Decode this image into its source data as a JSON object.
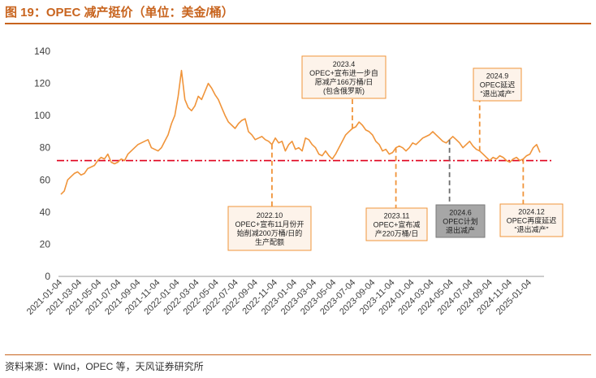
{
  "header": {
    "title": "图 19：OPEC 减产挺价（单位：美金/桶）"
  },
  "footer": {
    "source": "资料来源：Wind，OPEC 等，天风证券研究所"
  },
  "colors": {
    "line": "#f0943a",
    "reference": "#e0001b",
    "annotation_border": "#f0943a",
    "annotation_fill": "#fdf3ea",
    "highlight_fill": "#a6a6a6",
    "frame": "#c8641e"
  },
  "chart_data": {
    "type": "line",
    "title": "OPEC 减产挺价",
    "ylabel": "美金/桶",
    "ylim": [
      0,
      140
    ],
    "yticks": [
      "0",
      "20",
      "40",
      "60",
      "80",
      "100",
      "120",
      "140"
    ],
    "xtick_labels": [
      "2021-01-04",
      "2021-03-04",
      "2021-05-04",
      "2021-07-04",
      "2021-09-04",
      "2021-11-04",
      "2022-01-04",
      "2022-03-04",
      "2022-05-04",
      "2022-07-04",
      "2022-09-04",
      "2022-11-04",
      "2023-01-04",
      "2023-03-04",
      "2023-05-04",
      "2023-07-04",
      "2023-09-04",
      "2023-11-04",
      "2024-01-04",
      "2024-03-04",
      "2024-05-04",
      "2024-07-04",
      "2024-09-04",
      "2024-11-04",
      "2025-01-04"
    ],
    "reference_line": 72,
    "grid": false,
    "series": [
      {
        "values": [
          51,
          53,
          60,
          62,
          64,
          65,
          63,
          64,
          67,
          68,
          69,
          72,
          74,
          73,
          76,
          71,
          70,
          71,
          73,
          72,
          76,
          78,
          80,
          82,
          83,
          84,
          85,
          80,
          79,
          78,
          80,
          84,
          88,
          95,
          100,
          112,
          128,
          110,
          105,
          103,
          106,
          112,
          110,
          115,
          120,
          117,
          113,
          110,
          105,
          100,
          96,
          94,
          92,
          95,
          97,
          98,
          90,
          88,
          85,
          86,
          87,
          85,
          84,
          82,
          86,
          83,
          84,
          78,
          82,
          84,
          79,
          80,
          78,
          86,
          85,
          82,
          80,
          76,
          75,
          78,
          75,
          73,
          76,
          80,
          84,
          88,
          90,
          92,
          93,
          96,
          94,
          91,
          90,
          88,
          84,
          82,
          78,
          79,
          76,
          77,
          80,
          81,
          80,
          78,
          80,
          83,
          82,
          84,
          86,
          87,
          88,
          90,
          88,
          86,
          84,
          83,
          85,
          87,
          85,
          83,
          80,
          82,
          84,
          81,
          79,
          78,
          76,
          74,
          72,
          74,
          73,
          75,
          74,
          72,
          71,
          73,
          74,
          72,
          73,
          75,
          76,
          80,
          82,
          77
        ]
      }
    ],
    "annotations": [
      {
        "date_index": 63,
        "label_lines": [
          "2022.10",
          "OPEC+宣布11月份开",
          "始削减200万桶/日的",
          "生产配额"
        ]
      },
      {
        "date_index": 87,
        "label_lines": [
          "2023.4",
          "OPEC+宣布进一步自",
          "愿减产166万桶/日",
          "(包含俄罗斯)"
        ]
      },
      {
        "date_index": 100,
        "label_lines": [
          "2023.11",
          "OPEC+宣布减",
          "产220万桶/日"
        ]
      },
      {
        "date_index": 116,
        "label_lines": [
          "2024.6",
          "OPEC计划",
          "退出减产"
        ]
      },
      {
        "date_index": 125,
        "label_lines": [
          "2024.9",
          "OPEC延迟",
          "“退出减产”"
        ]
      },
      {
        "date_index": 138,
        "label_lines": [
          "2024.12",
          "OPEC再度延迟",
          "“退出减产”"
        ]
      }
    ]
  }
}
